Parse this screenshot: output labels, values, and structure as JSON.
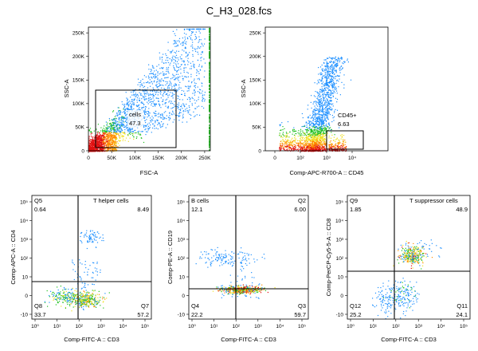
{
  "page": {
    "title": "C_H3_028.fcs"
  },
  "chart_data": [
    {
      "type": "scatter",
      "id": "fsc-ssc",
      "xlabel": "FSC-A",
      "ylabel": "SSC-A",
      "xticks": [
        "0",
        "50K",
        "100K",
        "150K",
        "200K",
        "250K"
      ],
      "yticks": [
        "0",
        "50K",
        "100K",
        "150K",
        "200K",
        "250K"
      ],
      "xlim": [
        0,
        262144
      ],
      "ylim": [
        0,
        262144
      ],
      "gates": [
        {
          "name": "cells",
          "value": "47.3",
          "x": [
            12000,
            190000
          ],
          "y": [
            0,
            135000
          ]
        }
      ]
    },
    {
      "type": "scatter",
      "id": "cd45-ssc",
      "xlabel": "Comp-APC-R700-A :: CD45",
      "ylabel": "SSC-A",
      "xticks": [
        "0",
        "10²",
        "10³",
        "10⁴"
      ],
      "yticks": [
        "0",
        "50K",
        "100K",
        "150K",
        "200K",
        "250K"
      ],
      "ylim": [
        0,
        262144
      ],
      "gates": [
        {
          "name": "CD45+",
          "value": "6.63",
          "x": [
            1000,
            20000
          ],
          "y": [
            0,
            40000
          ]
        }
      ]
    },
    {
      "type": "scatter",
      "id": "cd3-cd4",
      "xlabel": "Comp-FITC-A :: CD3",
      "ylabel": "Comp-APC-A :: CD4",
      "xticks": [
        "10⁰",
        "10¹",
        "10²",
        "10³",
        "10⁴",
        "10⁵"
      ],
      "yticks": [
        "-10",
        "0",
        "10",
        "10²",
        "10³",
        "10⁴",
        "10⁵"
      ],
      "quadrant_split": {
        "x": 150,
        "y": 200
      },
      "quadrants": [
        {
          "name": "Q5",
          "label": "",
          "value": "0.64",
          "pos": "top-left"
        },
        {
          "name": "",
          "label": "T helper cells",
          "value": "8.49",
          "pos": "top-right"
        },
        {
          "name": "Q8",
          "label": "",
          "value": "33.7",
          "pos": "bottom-left"
        },
        {
          "name": "Q7",
          "label": "",
          "value": "57.2",
          "pos": "bottom-right"
        }
      ]
    },
    {
      "type": "scatter",
      "id": "cd3-cd19",
      "xlabel": "Comp-FITC-A :: CD3",
      "ylabel": "Comp-PE-A :: CD19",
      "xticks": [
        "10⁰",
        "10¹",
        "10²",
        "10³",
        "10⁴",
        "10⁵"
      ],
      "yticks": [
        "-10",
        "0",
        "10",
        "10²",
        "10³",
        "10⁴",
        "10⁵"
      ],
      "quadrant_split": {
        "x": 150,
        "y": 15
      },
      "quadrants": [
        {
          "name": "",
          "label": "B cells",
          "value": "12.1",
          "pos": "top-left"
        },
        {
          "name": "Q2",
          "label": "",
          "value": "6.00",
          "pos": "top-right"
        },
        {
          "name": "Q4",
          "label": "",
          "value": "22.2",
          "pos": "bottom-left"
        },
        {
          "name": "Q3",
          "label": "",
          "value": "59.7",
          "pos": "bottom-right"
        }
      ]
    },
    {
      "type": "scatter",
      "id": "cd3-cd8",
      "xlabel": "Comp-FITC-A :: CD3",
      "ylabel": "Comp-PerCP-Cy5-5-A :: CD8",
      "xticks": [
        "10⁰",
        "10¹",
        "10²",
        "10³",
        "10⁴",
        "10⁵"
      ],
      "yticks": [
        "-10",
        "0",
        "10",
        "10²",
        "10³",
        "10⁴",
        "10⁵"
      ],
      "quadrant_split": {
        "x": 150,
        "y": 200
      },
      "quadrants": [
        {
          "name": "Q9",
          "label": "",
          "value": "1.85",
          "pos": "top-left"
        },
        {
          "name": "",
          "label": "T suppressor cells",
          "value": "48.9",
          "pos": "top-right"
        },
        {
          "name": "Q12",
          "label": "",
          "value": "25.2",
          "pos": "bottom-left"
        },
        {
          "name": "Q11",
          "label": "",
          "value": "24.1",
          "pos": "bottom-right"
        }
      ]
    }
  ]
}
